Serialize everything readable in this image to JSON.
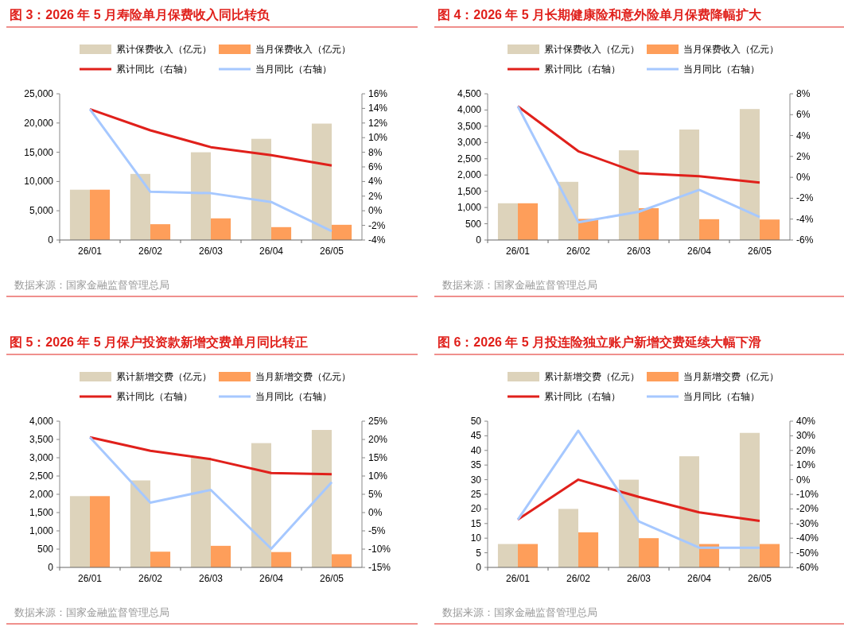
{
  "chart_data": [
    {
      "type": "bar",
      "title": "图 3：2026 年 5 月寿险单月保费收入同比转负",
      "categories": [
        "26/01",
        "26/02",
        "26/03",
        "26/04",
        "26/05"
      ],
      "series": [
        {
          "name": "累计保费收入（亿元）",
          "color": "#ddd3bb",
          "values": [
            8600,
            11300,
            15000,
            17300,
            19900
          ]
        },
        {
          "name": "当月保费收入（亿元）",
          "color": "#fe9e5a",
          "values": [
            8600,
            2700,
            3700,
            2200,
            2600
          ]
        },
        {
          "name": "累计同比（右轴）",
          "type": "line",
          "axis": "y2",
          "color": "#e0201b",
          "values": [
            13.9,
            11.0,
            8.7,
            7.6,
            6.2
          ]
        },
        {
          "name": "当月同比（右轴）",
          "type": "line",
          "axis": "y2",
          "color": "#a6c8ff",
          "values": [
            13.9,
            2.6,
            2.4,
            1.2,
            -2.8
          ]
        }
      ],
      "ylim": [
        0,
        25000
      ],
      "yticks": [
        0,
        {
          "value": 5000,
          "label": "5,000"
        },
        {
          "value": 10000,
          "label": "10,000"
        },
        {
          "value": 15000,
          "label": "15,000"
        },
        {
          "value": 20000,
          "label": "20,000"
        },
        {
          "value": 25000,
          "label": "25,000"
        }
      ],
      "y2lim": [
        -4,
        16
      ],
      "y2ticks": [
        {
          "value": -4,
          "label": "-4%"
        },
        {
          "value": -2,
          "label": "-2%"
        },
        {
          "value": 0,
          "label": "0%"
        },
        {
          "value": 2,
          "label": "2%"
        },
        {
          "value": 4,
          "label": "4%"
        },
        {
          "value": 6,
          "label": "6%"
        },
        {
          "value": 8,
          "label": "8%"
        },
        {
          "value": 10,
          "label": "10%"
        },
        {
          "value": 12,
          "label": "12%"
        },
        {
          "value": 14,
          "label": "14%"
        },
        {
          "value": 16,
          "label": "16%"
        }
      ],
      "legend": "top",
      "grid": false,
      "annotations": [
        "数据来源：国家金融监督管理总局"
      ]
    },
    {
      "type": "bar",
      "title": "图 4：2026 年 5 月长期健康险和意外险单月保费降幅扩大",
      "categories": [
        "26/01",
        "26/02",
        "26/03",
        "26/04",
        "26/05"
      ],
      "series": [
        {
          "name": "累计保费收入（亿元）",
          "color": "#ddd3bb",
          "values": [
            1130,
            1790,
            2760,
            3400,
            4030
          ]
        },
        {
          "name": "当月保费收入（亿元）",
          "color": "#fe9e5a",
          "values": [
            1130,
            650,
            980,
            640,
            630
          ]
        },
        {
          "name": "累计同比（右轴）",
          "type": "line",
          "axis": "y2",
          "color": "#e0201b",
          "values": [
            6.8,
            2.5,
            0.4,
            0.1,
            -0.5
          ]
        },
        {
          "name": "当月同比（右轴）",
          "type": "line",
          "axis": "y2",
          "color": "#a6c8ff",
          "values": [
            6.8,
            -4.3,
            -3.3,
            -1.2,
            -3.8
          ]
        }
      ],
      "ylim": [
        0,
        4500
      ],
      "yticks": [
        0,
        500,
        {
          "value": 1000,
          "label": "1,000"
        },
        {
          "value": 1500,
          "label": "1,500"
        },
        {
          "value": 2000,
          "label": "2,000"
        },
        {
          "value": 2500,
          "label": "2,500"
        },
        {
          "value": 3000,
          "label": "3,000"
        },
        {
          "value": 3500,
          "label": "3,500"
        },
        {
          "value": 4000,
          "label": "4,000"
        },
        {
          "value": 4500,
          "label": "4,500"
        }
      ],
      "y2lim": [
        -6,
        8
      ],
      "y2ticks": [
        {
          "value": -6,
          "label": "-6%"
        },
        {
          "value": -4,
          "label": "-4%"
        },
        {
          "value": -2,
          "label": "-2%"
        },
        {
          "value": 0,
          "label": "0%"
        },
        {
          "value": 2,
          "label": "2%"
        },
        {
          "value": 4,
          "label": "4%"
        },
        {
          "value": 6,
          "label": "6%"
        },
        {
          "value": 8,
          "label": "8%"
        }
      ],
      "legend": "top",
      "grid": false,
      "annotations": [
        "数据来源：国家金融监督管理总局"
      ]
    },
    {
      "type": "bar",
      "title": "图 5：2026 年 5 月保户投资款新增交费单月同比转正",
      "categories": [
        "26/01",
        "26/02",
        "26/03",
        "26/04",
        "26/05"
      ],
      "series": [
        {
          "name": "累计新增交费（亿元）",
          "color": "#ddd3bb",
          "values": [
            1950,
            2380,
            3000,
            3400,
            3760
          ]
        },
        {
          "name": "当月新增交费（亿元）",
          "color": "#fe9e5a",
          "values": [
            1950,
            430,
            590,
            420,
            360
          ]
        },
        {
          "name": "累计同比（右轴）",
          "type": "line",
          "axis": "y2",
          "color": "#e0201b",
          "values": [
            20.6,
            16.9,
            14.6,
            10.8,
            10.5
          ]
        },
        {
          "name": "当月同比（右轴）",
          "type": "line",
          "axis": "y2",
          "color": "#a6c8ff",
          "values": [
            20.6,
            2.7,
            6.2,
            -9.9,
            8.3
          ]
        }
      ],
      "ylim": [
        0,
        4000
      ],
      "yticks": [
        0,
        500,
        {
          "value": 1000,
          "label": "1,000"
        },
        {
          "value": 1500,
          "label": "1,500"
        },
        {
          "value": 2000,
          "label": "2,000"
        },
        {
          "value": 2500,
          "label": "2,500"
        },
        {
          "value": 3000,
          "label": "3,000"
        },
        {
          "value": 3500,
          "label": "3,500"
        },
        {
          "value": 4000,
          "label": "4,000"
        }
      ],
      "y2lim": [
        -15,
        25
      ],
      "y2ticks": [
        {
          "value": -15,
          "label": "-15%"
        },
        {
          "value": -10,
          "label": "-10%"
        },
        {
          "value": -5,
          "label": "-5%"
        },
        {
          "value": 0,
          "label": "0%"
        },
        {
          "value": 5,
          "label": "5%"
        },
        {
          "value": 10,
          "label": "10%"
        },
        {
          "value": 15,
          "label": "15%"
        },
        {
          "value": 20,
          "label": "20%"
        },
        {
          "value": 25,
          "label": "25%"
        }
      ],
      "legend": "top",
      "grid": false,
      "annotations": [
        "数据来源：国家金融监督管理总局"
      ]
    },
    {
      "type": "bar",
      "title": "图 6：2026 年 5 月投连险独立账户新增交费延续大幅下滑",
      "categories": [
        "26/01",
        "26/02",
        "26/03",
        "26/04",
        "26/05"
      ],
      "series": [
        {
          "name": "累计新增交费（亿元）",
          "color": "#ddd3bb",
          "values": [
            8,
            20,
            30,
            38,
            46
          ]
        },
        {
          "name": "当月新增交费（亿元）",
          "color": "#fe9e5a",
          "values": [
            8,
            12,
            10,
            8,
            8
          ]
        },
        {
          "name": "累计同比（右轴）",
          "type": "line",
          "axis": "y2",
          "color": "#e0201b",
          "values": [
            -27.3,
            0,
            -11.8,
            -22.4,
            -28.2
          ]
        },
        {
          "name": "当月同比（右轴）",
          "type": "line",
          "axis": "y2",
          "color": "#a6c8ff",
          "values": [
            -27.3,
            33.5,
            -28.5,
            -46.5,
            -46.5
          ]
        }
      ],
      "ylim": [
        0,
        50
      ],
      "yticks": [
        0,
        5,
        10,
        15,
        20,
        25,
        30,
        35,
        40,
        45,
        50
      ],
      "y2lim": [
        -60,
        40
      ],
      "y2ticks": [
        {
          "value": -60,
          "label": "-60%"
        },
        {
          "value": -50,
          "label": "-50%"
        },
        {
          "value": -40,
          "label": "-40%"
        },
        {
          "value": -30,
          "label": "-30%"
        },
        {
          "value": -20,
          "label": "-20%"
        },
        {
          "value": -10,
          "label": "-10%"
        },
        {
          "value": 0,
          "label": "0%"
        },
        {
          "value": 10,
          "label": "10%"
        },
        {
          "value": 20,
          "label": "20%"
        },
        {
          "value": 30,
          "label": "30%"
        },
        {
          "value": 40,
          "label": "40%"
        }
      ],
      "legend": "top",
      "grid": false,
      "annotations": [
        "数据来源：国家金融监督管理总局"
      ]
    }
  ]
}
